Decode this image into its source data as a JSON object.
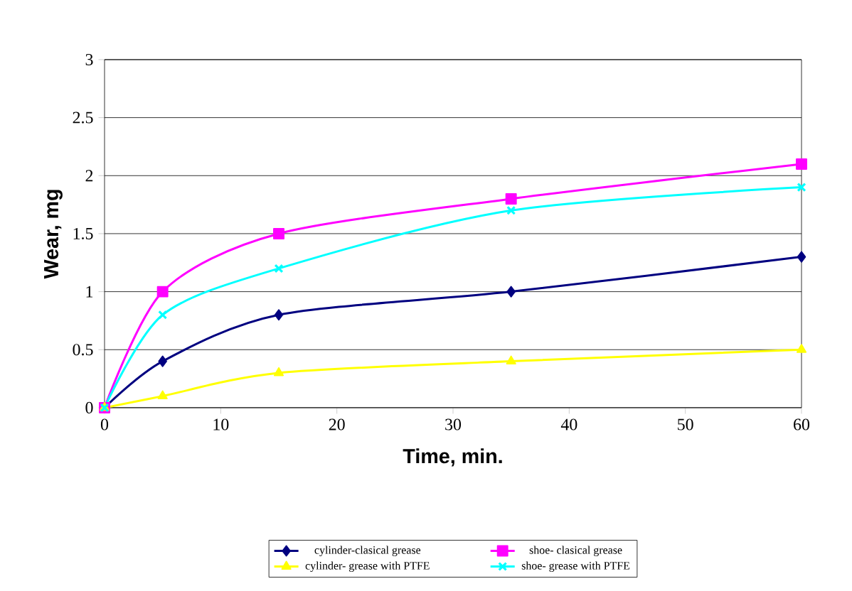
{
  "chart_data": {
    "type": "line",
    "xlabel": "Time, min.",
    "ylabel": "Wear, mg",
    "x": [
      0,
      5,
      15,
      35,
      60
    ],
    "series": [
      {
        "name": "cylinder-clasical grease",
        "color": "#000080",
        "marker": "diamond",
        "values": [
          0,
          0.4,
          0.8,
          1.0,
          1.3
        ]
      },
      {
        "name": "shoe- clasical grease",
        "color": "#ff00ff",
        "marker": "square",
        "values": [
          0,
          1.0,
          1.5,
          1.8,
          2.1
        ]
      },
      {
        "name": "cylinder- grease with PTFE",
        "color": "#ffff00",
        "marker": "triangle",
        "values": [
          0,
          0.1,
          0.3,
          0.4,
          0.5
        ]
      },
      {
        "name": "shoe- grease with PTFE",
        "color": "#00ffff",
        "marker": "cross",
        "values": [
          0,
          0.8,
          1.2,
          1.7,
          1.9
        ]
      }
    ],
    "xlim": [
      0,
      60
    ],
    "xticks": [
      0,
      10,
      20,
      30,
      40,
      50,
      60
    ],
    "ylim": [
      0,
      3
    ],
    "yticks": [
      0,
      0.5,
      1,
      1.5,
      2,
      2.5,
      3
    ],
    "grid": "y",
    "legend": "bottom"
  }
}
